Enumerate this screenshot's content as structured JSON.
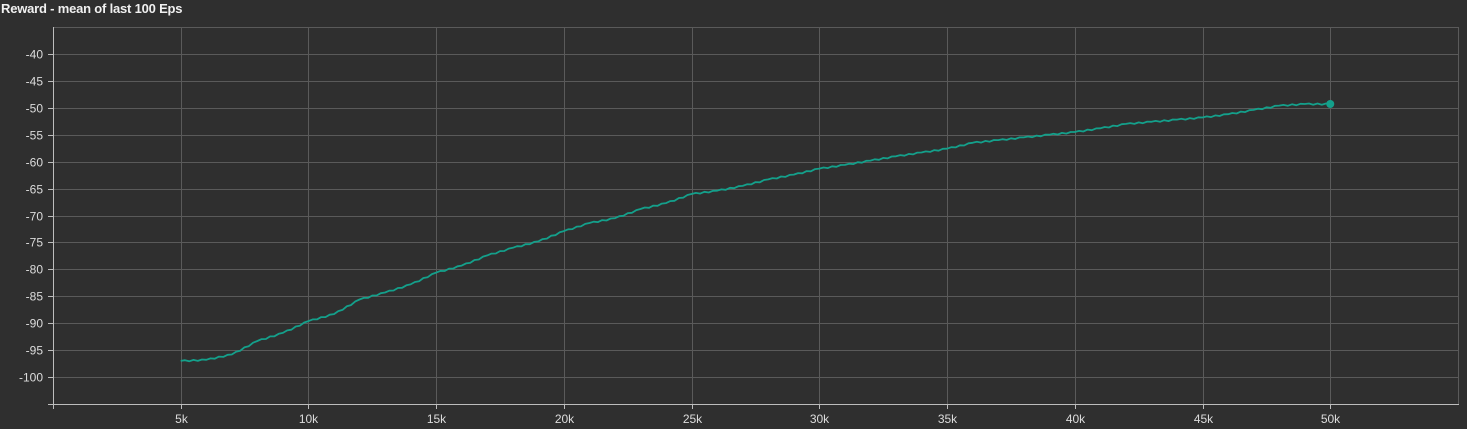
{
  "chart_data": {
    "type": "line",
    "title": "Reward - mean of last 100 Eps",
    "xlabel": "",
    "ylabel": "",
    "xlim": [
      0,
      55000
    ],
    "ylim": [
      -105,
      -35
    ],
    "x_ticks": [
      5000,
      10000,
      15000,
      20000,
      25000,
      30000,
      35000,
      40000,
      45000,
      50000
    ],
    "x_tick_labels": [
      "5k",
      "10k",
      "15k",
      "20k",
      "25k",
      "30k",
      "35k",
      "40k",
      "45k",
      "50k"
    ],
    "y_ticks": [
      -40,
      -45,
      -50,
      -55,
      -60,
      -65,
      -70,
      -75,
      -80,
      -85,
      -90,
      -95,
      -100
    ],
    "y_tick_labels": [
      "-40",
      "-45",
      "-50",
      "-55",
      "-60",
      "-65",
      "-70",
      "-75",
      "-80",
      "-85",
      "-90",
      "-95",
      "-100"
    ],
    "grid": true,
    "line_color": "#14a08b",
    "background_color": "#2f2f2f",
    "series": [
      {
        "x": [
          5000,
          6000,
          7000,
          8000,
          9000,
          10000,
          11000,
          12000,
          13000,
          14000,
          15000,
          16000,
          17000,
          18000,
          19000,
          20000,
          21000,
          22000,
          23000,
          24000,
          25000,
          26000,
          27000,
          28000,
          29000,
          30000,
          31000,
          32000,
          33000,
          34000,
          35000,
          36000,
          37000,
          38000,
          39000,
          40000,
          41000,
          42000,
          43000,
          44000,
          45000,
          46000,
          47000,
          48000,
          49000,
          50000
        ],
        "y": [
          -97.0,
          -96.8,
          -95.8,
          -93.3,
          -91.8,
          -89.6,
          -88.3,
          -85.6,
          -84.3,
          -82.8,
          -80.6,
          -79.3,
          -77.4,
          -76.0,
          -74.8,
          -72.9,
          -71.4,
          -70.5,
          -68.8,
          -67.7,
          -66.0,
          -65.4,
          -64.5,
          -63.3,
          -62.4,
          -61.3,
          -60.6,
          -59.8,
          -59.0,
          -58.3,
          -57.6,
          -56.5,
          -56.0,
          -55.5,
          -55.0,
          -54.5,
          -53.8,
          -53.0,
          -52.6,
          -52.2,
          -51.8,
          -51.2,
          -50.4,
          -49.6,
          -49.3,
          -49.3
        ]
      }
    ]
  }
}
